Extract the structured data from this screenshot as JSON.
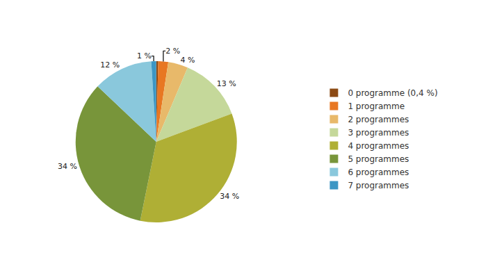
{
  "chart_data": {
    "type": "pie",
    "categories": [
      "0 programme (0,4 %)",
      "1 programme",
      "2 programmes",
      "3 programmes",
      "4 programmes",
      "5 programmes",
      "6 programmes",
      "7 programmes"
    ],
    "values": [
      0.4,
      2,
      4,
      13,
      34,
      34,
      12,
      1
    ],
    "value_labels": [
      null,
      "2 %",
      "4 %",
      "13 %",
      "34 %",
      "34 %",
      "12 %",
      "1 %"
    ],
    "colors": [
      "#8c4a14",
      "#e87722",
      "#e8b96a",
      "#c5d89a",
      "#afaf35",
      "#78953a",
      "#8ac8dc",
      "#3c96c4"
    ],
    "data_labels": true,
    "legend": "right"
  }
}
